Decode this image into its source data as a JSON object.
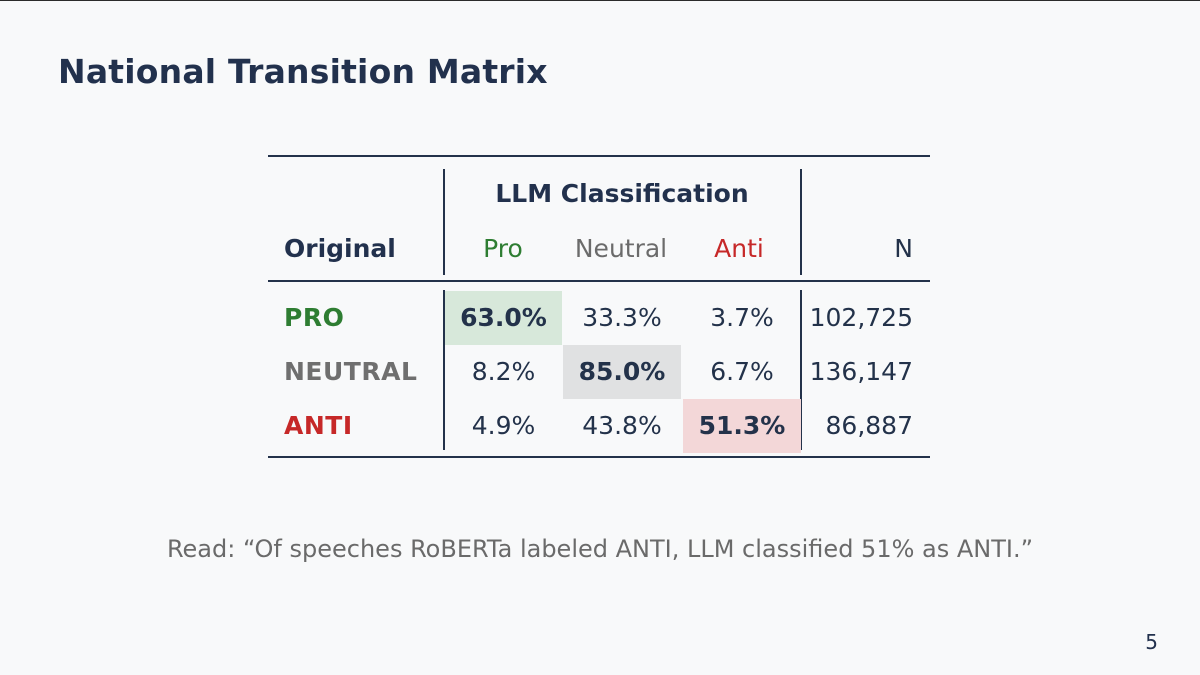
{
  "slide": {
    "title": "National Transition Matrix",
    "note": "Read: “Of speeches RoBERTa labeled ANTI, LLM classified 51% as ANTI.”",
    "page_number": "5"
  },
  "table": {
    "group_header": "LLM Classification",
    "row_header": "Original",
    "columns": {
      "pro": "Pro",
      "neutral": "Neutral",
      "anti": "Anti",
      "n": "N"
    },
    "rows": [
      {
        "label": "PRO",
        "pro": "63.0%",
        "neutral": "33.3%",
        "anti": "3.7%",
        "n": "102,725"
      },
      {
        "label": "NEUTRAL",
        "pro": "8.2%",
        "neutral": "85.0%",
        "anti": "6.7%",
        "n": "136,147"
      },
      {
        "label": "ANTI",
        "pro": "4.9%",
        "neutral": "43.8%",
        "anti": "51.3%",
        "n": "86,887"
      }
    ]
  },
  "colors": {
    "pro": "#2e7d32",
    "neutral": "#6f6f6f",
    "anti": "#c62828",
    "pro_highlight": "#d7e8da",
    "neutral_highlight": "#e0e1e2",
    "anti_highlight": "#f3d7d8",
    "text": "#23324a"
  }
}
